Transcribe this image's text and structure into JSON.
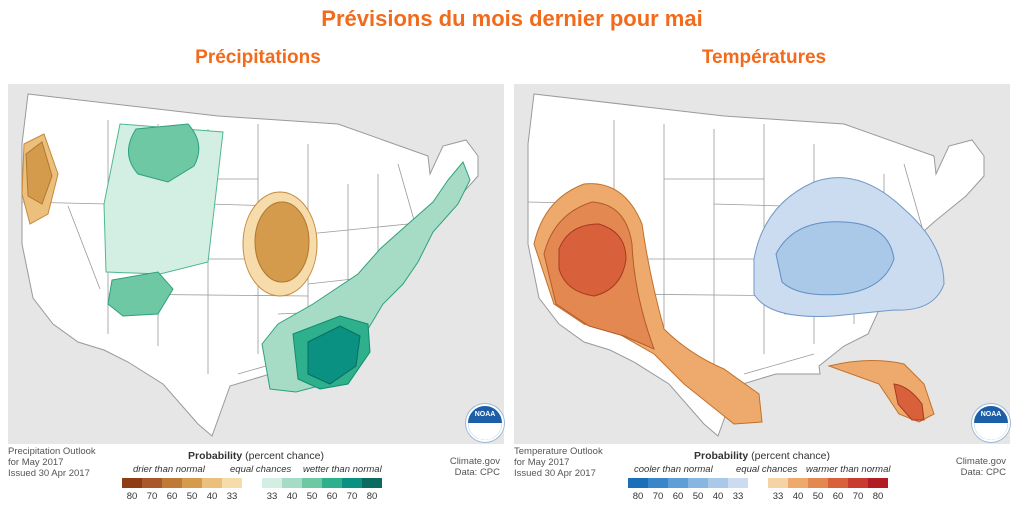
{
  "page": {
    "main_title": "Prévisions du mois dernier pour mai",
    "left_title": "Précipitations",
    "right_title": "Températures"
  },
  "colors": {
    "title_orange": "#f26a1b",
    "map_land": "#ffffff",
    "map_ocean": "#e6e6e6",
    "state_line": "#9a9a9a"
  },
  "precip": {
    "outlook_line1": "Precipitation Outlook",
    "outlook_line2": "for May 2017",
    "outlook_line3": "Issued 30 Apr 2017",
    "credit_line1": "Climate.gov",
    "credit_line2": "Data: CPC",
    "legend_bold": "Probability",
    "legend_rest": " (percent chance)",
    "cap_left": "drier than normal",
    "cap_mid": "equal chances",
    "cap_right": "wetter than normal",
    "colors_left": [
      "#8e3c14",
      "#a8582a",
      "#c07a37",
      "#d59b4c",
      "#ebc07d",
      "#f5dcaa"
    ],
    "colors_right": [
      "#d3eee2",
      "#a6dcc5",
      "#6ec8a3",
      "#2fb08c",
      "#0a9181",
      "#0a6b5e"
    ],
    "ticks": [
      "80",
      "70",
      "60",
      "50",
      "40",
      "33",
      "33",
      "40",
      "50",
      "60",
      "70",
      "80"
    ],
    "noaa_label": "NOAA"
  },
  "temp": {
    "outlook_line1": "Temperature Outlook",
    "outlook_line2": "for May 2017",
    "outlook_line3": "Issued 30 Apr 2017",
    "credit_line1": "Climate.gov",
    "credit_line2": "Data: CPC",
    "legend_bold": "Probability",
    "legend_rest": " (percent chance)",
    "cap_left": "cooler than normal",
    "cap_mid": "equal chances",
    "cap_right": "warmer than normal",
    "colors_left": [
      "#1a6fb8",
      "#3b86c8",
      "#5f9fd6",
      "#87b6e1",
      "#aac8e8",
      "#cbdcf0"
    ],
    "colors_right": [
      "#f6d3a6",
      "#eeaa6c",
      "#e28850",
      "#d8603b",
      "#c93a2f",
      "#b01e24"
    ],
    "ticks": [
      "80",
      "70",
      "60",
      "50",
      "40",
      "33",
      "33",
      "40",
      "50",
      "60",
      "70",
      "80"
    ],
    "noaa_label": "NOAA"
  }
}
